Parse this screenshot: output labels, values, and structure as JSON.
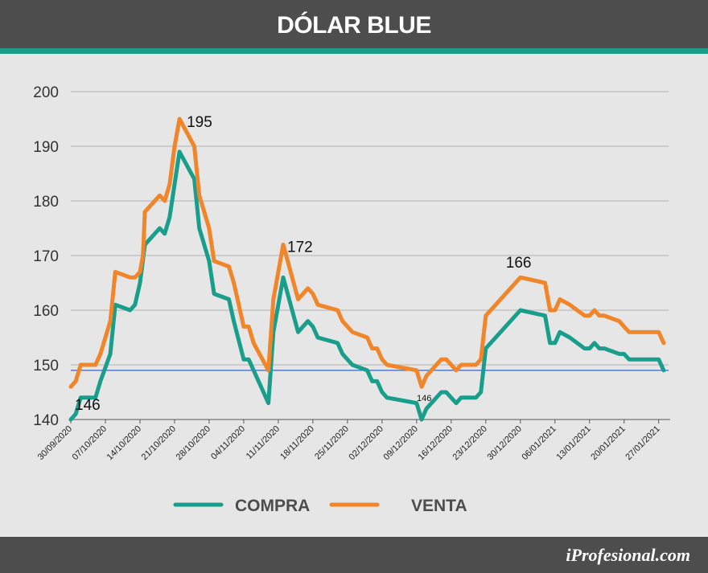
{
  "header": {
    "title": "DÓLAR BLUE"
  },
  "footer": {
    "brand": "iProfesional.com"
  },
  "colors": {
    "compra": "#1a9e8c",
    "venta": "#f0852a",
    "reference_line": "#4a72c0",
    "grid": "#bdbdbd"
  },
  "chart_data": {
    "type": "line",
    "title": "DÓLAR BLUE",
    "xlabel": "",
    "ylabel": "",
    "ylim": [
      140,
      200
    ],
    "yticks": [
      140,
      150,
      160,
      170,
      180,
      190,
      200
    ],
    "grid": true,
    "legend_position": "bottom-center",
    "x_range": [
      0,
      121
    ],
    "tick_labels": [
      {
        "x": 0,
        "label": "30/09/2020"
      },
      {
        "x": 7,
        "label": "07/10/2020"
      },
      {
        "x": 14,
        "label": "14/10/2020"
      },
      {
        "x": 21,
        "label": "21/10/2020"
      },
      {
        "x": 28,
        "label": "28/10/2020"
      },
      {
        "x": 35,
        "label": "04/11/2020"
      },
      {
        "x": 42,
        "label": "11/11/2020"
      },
      {
        "x": 49,
        "label": "18/11/2020"
      },
      {
        "x": 56,
        "label": "25/11/2020"
      },
      {
        "x": 63,
        "label": "02/12/2020"
      },
      {
        "x": 70,
        "label": "09/12/2020"
      },
      {
        "x": 77,
        "label": "16/12/2020"
      },
      {
        "x": 84,
        "label": "23/12/2020"
      },
      {
        "x": 91,
        "label": "30/12/2020"
      },
      {
        "x": 98,
        "label": "06/01/2021"
      },
      {
        "x": 105,
        "label": "13/01/2021"
      },
      {
        "x": 112,
        "label": "20/01/2021"
      },
      {
        "x": 119,
        "label": "27/01/2021"
      }
    ],
    "reference_line": {
      "y": 149
    },
    "series": [
      {
        "name": "COMPRA",
        "points": [
          [
            0,
            140
          ],
          [
            1,
            141
          ],
          [
            2,
            144
          ],
          [
            4,
            144
          ],
          [
            5,
            144
          ],
          [
            6,
            147
          ],
          [
            8,
            152
          ],
          [
            9,
            161
          ],
          [
            12,
            160
          ],
          [
            13,
            161
          ],
          [
            14,
            165
          ],
          [
            15,
            172
          ],
          [
            18,
            175
          ],
          [
            19,
            174
          ],
          [
            20,
            177
          ],
          [
            22,
            189
          ],
          [
            25,
            184
          ],
          [
            26,
            175
          ],
          [
            28,
            169
          ],
          [
            29,
            163
          ],
          [
            32,
            162
          ],
          [
            33,
            158
          ],
          [
            35,
            151
          ],
          [
            36,
            151
          ],
          [
            39,
            145
          ],
          [
            40,
            143
          ],
          [
            41,
            156
          ],
          [
            43,
            166
          ],
          [
            46,
            156
          ],
          [
            48,
            158
          ],
          [
            49,
            157
          ],
          [
            50,
            155
          ],
          [
            54,
            154
          ],
          [
            55,
            152
          ],
          [
            57,
            150
          ],
          [
            60,
            149
          ],
          [
            61,
            147
          ],
          [
            62,
            147
          ],
          [
            63,
            145
          ],
          [
            64,
            144
          ],
          [
            70,
            143
          ],
          [
            71,
            140
          ],
          [
            72,
            142
          ],
          [
            75,
            145
          ],
          [
            76,
            145
          ],
          [
            77,
            144
          ],
          [
            78,
            143
          ],
          [
            79,
            144
          ],
          [
            82,
            144
          ],
          [
            83,
            145
          ],
          [
            84,
            153
          ],
          [
            91,
            160
          ],
          [
            96,
            159
          ],
          [
            97,
            154
          ],
          [
            98,
            154
          ],
          [
            99,
            156
          ],
          [
            101,
            155
          ],
          [
            104,
            153
          ],
          [
            105,
            153
          ],
          [
            106,
            154
          ],
          [
            107,
            153
          ],
          [
            108,
            153
          ],
          [
            111,
            152
          ],
          [
            112,
            152
          ],
          [
            113,
            151
          ],
          [
            119,
            151
          ],
          [
            120,
            149
          ]
        ]
      },
      {
        "name": "VENTA",
        "points": [
          [
            0,
            146
          ],
          [
            1,
            147
          ],
          [
            2,
            150
          ],
          [
            5,
            150
          ],
          [
            6,
            152
          ],
          [
            8,
            158
          ],
          [
            9,
            167
          ],
          [
            12,
            166
          ],
          [
            13,
            166
          ],
          [
            14,
            167
          ],
          [
            14.6,
            170
          ],
          [
            15,
            178
          ],
          [
            18,
            181
          ],
          [
            19,
            180
          ],
          [
            20,
            183
          ],
          [
            21,
            190
          ],
          [
            22,
            195
          ],
          [
            25,
            190
          ],
          [
            26,
            181
          ],
          [
            28,
            175
          ],
          [
            29,
            169
          ],
          [
            32,
            168
          ],
          [
            33,
            165
          ],
          [
            34,
            161
          ],
          [
            35,
            157
          ],
          [
            36,
            157
          ],
          [
            37,
            154
          ],
          [
            40,
            149
          ],
          [
            41,
            162
          ],
          [
            43,
            172
          ],
          [
            46,
            162
          ],
          [
            48,
            164
          ],
          [
            49,
            163
          ],
          [
            50,
            161
          ],
          [
            54,
            160
          ],
          [
            55,
            158
          ],
          [
            57,
            156
          ],
          [
            60,
            155
          ],
          [
            61,
            153
          ],
          [
            62,
            153
          ],
          [
            63,
            151
          ],
          [
            64,
            150
          ],
          [
            70,
            149
          ],
          [
            71,
            146
          ],
          [
            72,
            148
          ],
          [
            75,
            151
          ],
          [
            76,
            151
          ],
          [
            78,
            149
          ],
          [
            79,
            150
          ],
          [
            82,
            150
          ],
          [
            83,
            151
          ],
          [
            84,
            159
          ],
          [
            91,
            166
          ],
          [
            96,
            165
          ],
          [
            97,
            160
          ],
          [
            98,
            160
          ],
          [
            99,
            162
          ],
          [
            101,
            161
          ],
          [
            104,
            159
          ],
          [
            105,
            159
          ],
          [
            106,
            160
          ],
          [
            107,
            159
          ],
          [
            108,
            159
          ],
          [
            111,
            158
          ],
          [
            112,
            157
          ],
          [
            113,
            156
          ],
          [
            119,
            156
          ],
          [
            120,
            154
          ]
        ]
      }
    ],
    "annotations": [
      {
        "text": "146",
        "x": 0,
        "y": 146
      },
      {
        "text": "195",
        "x": 22,
        "y": 195
      },
      {
        "text": "172",
        "x": 43,
        "y": 172
      },
      {
        "text": "146",
        "x": 71,
        "y": 146
      },
      {
        "text": "166",
        "x": 91,
        "y": 166
      }
    ]
  }
}
